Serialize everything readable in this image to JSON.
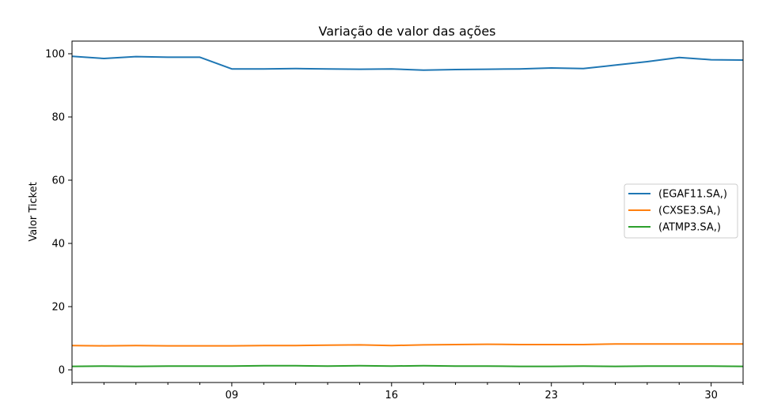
{
  "chart_data": {
    "type": "line",
    "title": "Variação de valor das ações",
    "xlabel": "",
    "ylabel": "Valor Ticket",
    "x_index": [
      0,
      1,
      2,
      3,
      4,
      5,
      6,
      7,
      8,
      9,
      10,
      11,
      12,
      13,
      14,
      15,
      16,
      17,
      18,
      19,
      20,
      21
    ],
    "x_ticks": [
      {
        "index": 5,
        "label": "09"
      },
      {
        "index": 10,
        "label": "16"
      },
      {
        "index": 15,
        "label": "23"
      },
      {
        "index": 20,
        "label": "30"
      }
    ],
    "x_minor_ticks": [
      0,
      1,
      2,
      3,
      4,
      6,
      7,
      8,
      9,
      11,
      12,
      13,
      14,
      16,
      17,
      18,
      19,
      21
    ],
    "xlim": [
      0,
      21
    ],
    "ylim": [
      -4,
      104
    ],
    "y_ticks": [
      0,
      20,
      40,
      60,
      80,
      100
    ],
    "grid": false,
    "legend_position": "center-right",
    "series": [
      {
        "name": "(EGAF11.SA,)",
        "color": "#1f77b4",
        "values": [
          99.2,
          98.5,
          99.1,
          98.9,
          98.9,
          95.2,
          95.2,
          95.3,
          95.2,
          95.1,
          95.2,
          94.8,
          95.0,
          95.1,
          95.2,
          95.5,
          95.3,
          96.4,
          97.5,
          98.8,
          98.1,
          98.0
        ]
      },
      {
        "name": "(CXSE3.SA,)",
        "color": "#ff7f0e",
        "values": [
          7.7,
          7.6,
          7.7,
          7.6,
          7.6,
          7.6,
          7.7,
          7.7,
          7.8,
          7.9,
          7.7,
          7.9,
          8.0,
          8.1,
          8.0,
          8.0,
          8.0,
          8.2,
          8.2,
          8.2,
          8.2,
          8.2
        ]
      },
      {
        "name": "(ATMP3.SA,)",
        "color": "#2ca02c",
        "values": [
          1.1,
          1.2,
          1.1,
          1.2,
          1.2,
          1.2,
          1.3,
          1.3,
          1.2,
          1.3,
          1.2,
          1.3,
          1.2,
          1.2,
          1.1,
          1.1,
          1.2,
          1.1,
          1.2,
          1.2,
          1.2,
          1.1
        ]
      }
    ]
  }
}
